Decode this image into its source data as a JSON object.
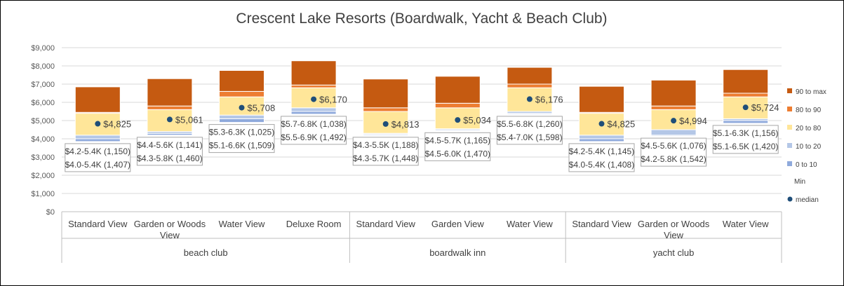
{
  "chart_data": {
    "type": "bar",
    "subtype": "stacked-percentile-band",
    "title": "Crescent Lake Resorts (Boardwalk, Yacht & Beach Club)",
    "ylim": [
      0,
      9000
    ],
    "yticks": [
      "$0",
      "$1,000",
      "$2,000",
      "$3,000",
      "$4,000",
      "$5,000",
      "$6,000",
      "$7,000",
      "$8,000",
      "$9,000"
    ],
    "grid": true,
    "legend_position": "right",
    "colors": {
      "90 to max": "#C55A11",
      "80 to 90": "#ED7D31",
      "20 to 80": "#FFE699",
      "10 to 20": "#B4C7E7",
      "0 to 10": "#8FAADC",
      "median": "#1F4E79",
      "grid": "#D9D9D9"
    },
    "legend": [
      {
        "key": "90 to max",
        "label": "90 to max"
      },
      {
        "key": "80 to 90",
        "label": "80 to 90"
      },
      {
        "key": "20 to 80",
        "label": "20 to 80"
      },
      {
        "key": "10 to 20",
        "label": "10 to 20"
      },
      {
        "key": "0 to 10",
        "label": "0 to 10"
      },
      {
        "key": "min",
        "label": "Min"
      },
      {
        "key": "median",
        "label": "median"
      }
    ],
    "groups": [
      {
        "name": "beach club",
        "count": 4
      },
      {
        "name": "boardwalk inn",
        "count": 3
      },
      {
        "name": "yacht club",
        "count": 3
      }
    ],
    "categories": [
      {
        "label": [
          "Standard View"
        ],
        "group": "beach club",
        "min": 3850,
        "p10": 4000,
        "p20": 4200,
        "p80": 5400,
        "p90": 5450,
        "max": 6850,
        "median": 4825,
        "median_label": "$4,825",
        "labels": [
          "$4.2-5.4K (1,150)",
          "$4.0-5.4K (1,407)"
        ]
      },
      {
        "label": [
          "Garden or Woods",
          "View"
        ],
        "group": "beach club",
        "min": 4200,
        "p10": 4300,
        "p20": 4400,
        "p80": 5600,
        "p90": 5800,
        "max": 7300,
        "median": 5061,
        "median_label": "$5,061",
        "labels": [
          "$4.4-5.6K (1,141)",
          "$4.3-5.8K (1,460)"
        ]
      },
      {
        "label": [
          "Water View"
        ],
        "group": "beach club",
        "min": 4900,
        "p10": 5100,
        "p20": 5300,
        "p80": 6300,
        "p90": 6600,
        "max": 7750,
        "median": 5708,
        "median_label": "$5,708",
        "labels": [
          "$5.3-6.3K (1,025)",
          "$5.1-6.6K (1,509)"
        ]
      },
      {
        "label": [
          "Deluxe Room"
        ],
        "group": "beach club",
        "min": 5350,
        "p10": 5500,
        "p20": 5700,
        "p80": 6800,
        "p90": 6950,
        "max": 8280,
        "median": 6170,
        "median_label": "$6,170",
        "labels": [
          "$5.7-6.8K (1,038)",
          "$5.5-6.9K (1,492)"
        ]
      },
      {
        "label": [
          "Standard View"
        ],
        "group": "boardwalk inn",
        "min": 4200,
        "p10": 4250,
        "p20": 4300,
        "p80": 5500,
        "p90": 5700,
        "max": 7280,
        "median": 4813,
        "median_label": "$4,813",
        "labels": [
          "$4.3-5.5K (1,188)",
          "$4.3-5.7K (1,448)"
        ]
      },
      {
        "label": [
          "Garden View"
        ],
        "group": "boardwalk inn",
        "min": 4450,
        "p10": 4500,
        "p20": 4550,
        "p80": 5700,
        "p90": 5950,
        "max": 7430,
        "median": 5034,
        "median_label": "$5,034",
        "labels": [
          "$4.5-5.7K (1,165)",
          "$4.5-6.0K (1,470)"
        ]
      },
      {
        "label": [
          "Water View"
        ],
        "group": "boardwalk inn",
        "min": 5350,
        "p10": 5400,
        "p20": 5500,
        "p80": 6800,
        "p90": 7000,
        "max": 7920,
        "median": 6176,
        "median_label": "$6,176",
        "labels": [
          "$5.5-6.8K (1,260)",
          "$5.4-7.0K (1,598)"
        ]
      },
      {
        "label": [
          "Standard View"
        ],
        "group": "yacht club",
        "min": 3850,
        "p10": 4000,
        "p20": 4200,
        "p80": 5400,
        "p90": 5450,
        "max": 6880,
        "median": 4825,
        "median_label": "$4,825",
        "labels": [
          "$4.2-5.4K (1,145)",
          "$4.0-5.4K (1,408)"
        ]
      },
      {
        "label": [
          "Garden or Woods",
          "View"
        ],
        "group": "yacht club",
        "min": 4150,
        "p10": 4200,
        "p20": 4500,
        "p80": 5600,
        "p90": 5800,
        "max": 7220,
        "median": 4994,
        "median_label": "$4,994",
        "labels": [
          "$4.5-5.6K (1,076)",
          "$4.2-5.8K (1,542)"
        ]
      },
      {
        "label": [
          "Water View"
        ],
        "group": "yacht club",
        "min": 4850,
        "p10": 5000,
        "p20": 5100,
        "p80": 6300,
        "p90": 6500,
        "max": 7800,
        "median": 5724,
        "median_label": "$5,724",
        "labels": [
          "$5.1-6.3K (1,156)",
          "$5.1-6.5K (1,420)"
        ]
      }
    ]
  }
}
